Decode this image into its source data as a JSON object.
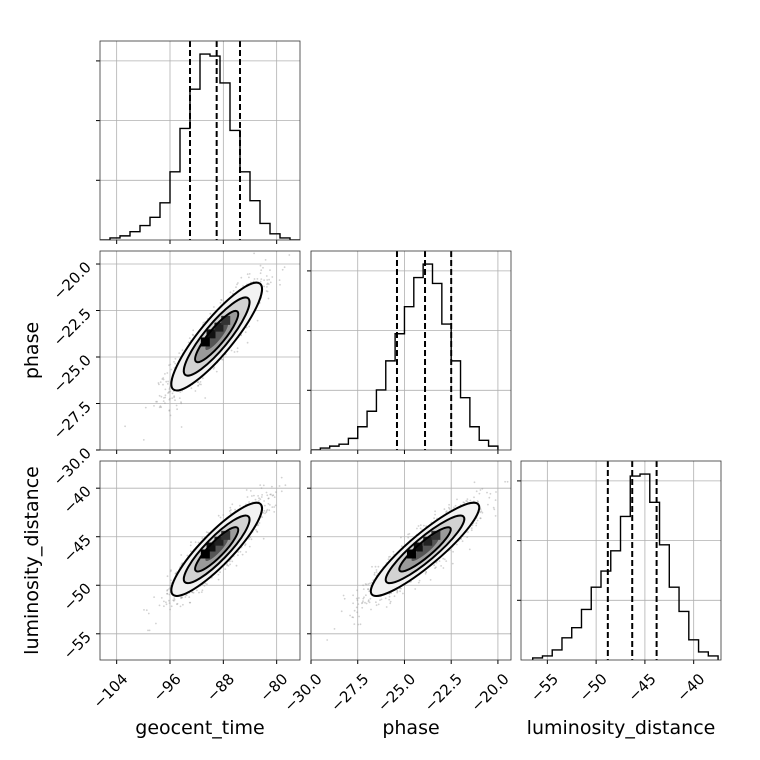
{
  "chart_data": {
    "type": "corner",
    "parameters": [
      "geocent_time",
      "phase",
      "luminosity_distance"
    ],
    "axis_labels": {
      "geocent_time": "geocent_time",
      "phase": "phase",
      "luminosity_distance": "luminosity_distance"
    },
    "ranges": {
      "geocent_time": [
        -106.5,
        -76.5
      ],
      "phase": [
        -30.0,
        -19.3
      ],
      "luminosity_distance": [
        -57.7,
        -37.2
      ]
    },
    "ticks": {
      "geocent_time": [
        -104,
        -96,
        -88,
        -80
      ],
      "phase": [
        -30.0,
        -27.5,
        -25.0,
        -22.5,
        -20.0
      ],
      "luminosity_distance": [
        -55,
        -50,
        -45,
        -40
      ]
    },
    "tick_labels": {
      "geocent_time": [
        "−104",
        "−96",
        "−88",
        "−80"
      ],
      "phase": [
        "−30.0",
        "−27.5",
        "−25.0",
        "−22.5",
        "−20.0"
      ],
      "luminosity_distance": [
        "−55",
        "−50",
        "−45",
        "−40"
      ]
    },
    "y_tick_labels": {
      "phase": [
        "−30.0",
        "−27.5",
        "−25.0",
        "−22.5",
        "−20.0"
      ],
      "luminosity_distance": [
        "−55",
        "−50",
        "−45",
        "−40"
      ]
    },
    "quantiles": {
      "geocent_time": [
        -93.0,
        -89.0,
        -85.5
      ],
      "phase": [
        -25.4,
        -23.9,
        -22.5
      ],
      "luminosity_distance": [
        -48.8,
        -46.3,
        -43.8
      ]
    },
    "histograms": {
      "geocent_time": {
        "edges": [
          -106.5,
          -105,
          -103.5,
          -102,
          -100.5,
          -99,
          -97.5,
          -96,
          -94.5,
          -93,
          -91.5,
          -90,
          -88.5,
          -87,
          -85.5,
          -84,
          -82.5,
          -81,
          -79.5,
          -78,
          -76.5
        ],
        "counts": [
          0,
          1,
          2,
          4,
          7,
          11,
          18,
          33,
          54,
          73,
          90,
          89,
          76,
          53,
          33,
          19,
          8,
          3,
          1,
          0
        ]
      },
      "phase": {
        "edges": [
          -30,
          -29.5,
          -29,
          -28.5,
          -28,
          -27.5,
          -27,
          -26.5,
          -26,
          -25.5,
          -25,
          -24.5,
          -24,
          -23.5,
          -23,
          -22.5,
          -22,
          -21.5,
          -21,
          -20.5,
          -20
        ],
        "counts": [
          0,
          1,
          2,
          3,
          6,
          12,
          20,
          31,
          46,
          60,
          74,
          89,
          96,
          86,
          65,
          46,
          27,
          12,
          5,
          2
        ]
      },
      "luminosity_distance": {
        "edges": [
          -56.5,
          -55.5,
          -54.5,
          -53.5,
          -52.5,
          -51.5,
          -50.5,
          -49.5,
          -48.5,
          -47.5,
          -46.5,
          -45.5,
          -44.5,
          -43.5,
          -42.5,
          -41.5,
          -40.5,
          -39.5,
          -38.5,
          -37.5
        ],
        "counts": [
          1,
          2,
          5,
          11,
          16,
          25,
          36,
          44,
          54,
          71,
          91,
          92,
          78,
          57,
          36,
          24,
          10,
          4,
          2
        ]
      }
    },
    "correlations": {
      "phase|geocent_time": 0.88,
      "luminosity_distance|geocent_time": 0.88,
      "luminosity_distance|phase": 0.9
    },
    "sigma": {
      "geocent_time": 3.4,
      "phase": 1.45,
      "luminosity_distance": 2.4
    },
    "grid": true
  }
}
